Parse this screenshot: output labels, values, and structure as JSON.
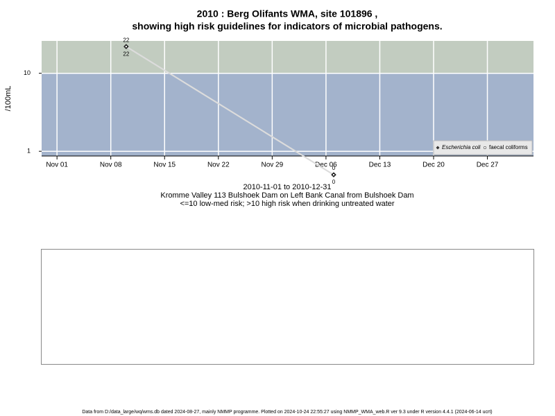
{
  "chart_data": {
    "type": "line",
    "title": [
      "2010 : Berg Olifants WMA, site 101896 ,",
      "showing high risk guidelines for indicators of microbial pathogens."
    ],
    "subtitle": [
      "2010-11-01 to 2010-12-31",
      "Kromme Valley 113 Bulshoek Dam on Left Bank Canal from Bulshoek Dam",
      "<=10 low-med risk; >10 high risk when drinking untreated water"
    ],
    "ylabel": "/100mL",
    "x": [
      "2010-11-10",
      "2010-12-07"
    ],
    "series": [
      {
        "name": "Escherichia coli",
        "color": "#333333",
        "values": [
          22,
          0.5
        ],
        "value_labels": [
          "22",
          "0"
        ]
      },
      {
        "name": "faecal coliforms",
        "color": "#ffffff",
        "values": [
          22,
          0.5
        ],
        "value_labels": [
          "22",
          "0"
        ]
      }
    ],
    "line_color": "#dcdcdc",
    "guideline": 10,
    "high_color": "#c2ccc0",
    "low_color": "#a3b3cc",
    "log_y": true,
    "ylim": [
      0.87,
      26
    ],
    "yticks": [
      1,
      10
    ],
    "xlim": [
      "2010-10-30",
      "2011-01-02"
    ],
    "xticks": [
      {
        "value": "2010-11-01",
        "label": "Nov 01"
      },
      {
        "value": "2010-11-08",
        "label": "Nov 08"
      },
      {
        "value": "2010-11-15",
        "label": "Nov 15"
      },
      {
        "value": "2010-11-22",
        "label": "Nov 22"
      },
      {
        "value": "2010-11-29",
        "label": "Nov 29"
      },
      {
        "value": "2010-12-06",
        "label": "Dec 06"
      },
      {
        "value": "2010-12-13",
        "label": "Dec 13"
      },
      {
        "value": "2010-12-20",
        "label": "Dec 20"
      },
      {
        "value": "2010-12-27",
        "label": "Dec 27"
      }
    ],
    "grid": true,
    "legend": "bottom-right",
    "footer": "Data from D:/data_large/wq/wms.db dated 2024-08-27, mainly NMMP programme. Plotted on 2024-10-24 22:55:27 using NMMP_WMA_web.R ver 9.3 under R version 4.4.1 (2024-06-14 ucrt)"
  }
}
